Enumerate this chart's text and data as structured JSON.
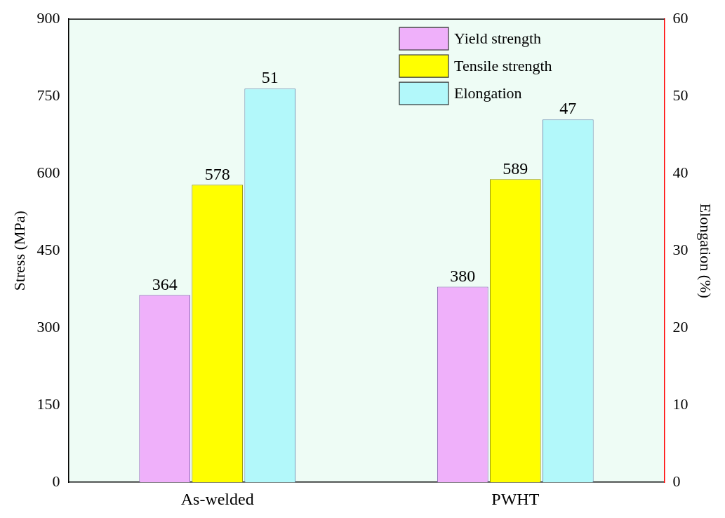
{
  "chart_data": {
    "type": "bar",
    "categories": [
      "As-welded",
      "PWHT"
    ],
    "ylabel": "Stress (MPa)",
    "y2label": "Elongation (%)",
    "ylim": [
      0,
      900
    ],
    "yticks": [
      0,
      150,
      300,
      450,
      600,
      750,
      900
    ],
    "y2lim": [
      0,
      60
    ],
    "y2ticks": [
      0,
      10,
      20,
      30,
      40,
      50,
      60
    ],
    "legend": "top right",
    "data_labels": true,
    "grid": false,
    "series": [
      {
        "name": "Yield strength",
        "color": "#efb0fa",
        "values": [
          364,
          380
        ]
      },
      {
        "name": "Tensile strength",
        "color": "#ffff00",
        "values": [
          578,
          589
        ]
      },
      {
        "name": "Elongation",
        "color": "#b2f8fa",
        "values": [
          51,
          47
        ],
        "axis": "y2"
      }
    ]
  }
}
